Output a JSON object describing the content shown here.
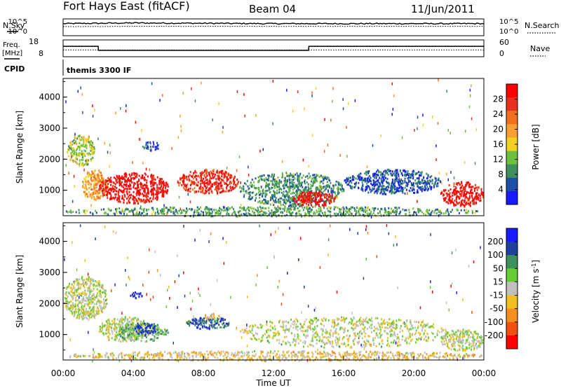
{
  "header": {
    "station": "Fort Hays East (fitACF)",
    "beam": "Beam 04",
    "date": "11/Jun/2011"
  },
  "side_labels": {
    "nsky": "N.Sky",
    "nsearch": "N.Search",
    "freq_line1": "Freq.",
    "freq_line2": "[MHz]",
    "nave": "Nave",
    "cpid": "CPID",
    "cpid_value": "themis 3300 IF"
  },
  "noise_axis": {
    "top": "10^5",
    "bottom": "10^0",
    "right_top": "10^5",
    "right_bottom": "10^0"
  },
  "freq_axis": {
    "top": "18",
    "bottom": "8"
  },
  "nave_axis": {
    "top": "60",
    "bottom": "0"
  },
  "colors": {
    "power": [
      "#1a1aff",
      "#1f4fa8",
      "#3f8f5f",
      "#6fbf3f",
      "#f0d020",
      "#f5a030",
      "#f07020",
      "#e83020",
      "#ff0000"
    ],
    "velocity": [
      "#1a1aff",
      "#2040a0",
      "#3f8f5f",
      "#66cc33",
      "#c0c0c0",
      "#f0c020",
      "#f59020",
      "#f05010",
      "#ff0000"
    ]
  },
  "chart_data": [
    {
      "type": "line",
      "panel": "noise",
      "x": [
        "00:00",
        "04:00",
        "08:00",
        "12:00",
        "16:00",
        "20:00",
        "00:00"
      ],
      "series": [
        {
          "name": "N.Sky",
          "values": [
            3.6,
            3.8,
            3.7,
            3.6,
            3.6,
            3.6,
            3.6
          ]
        },
        {
          "name": "N.Search",
          "values": [
            2.7,
            2.8,
            2.8,
            2.8,
            2.8,
            2.8,
            2.8
          ]
        }
      ],
      "ylim": [
        0,
        5
      ]
    },
    {
      "type": "line",
      "panel": "frequency",
      "x": [
        "00:00",
        "02:00",
        "02:01",
        "14:00",
        "14:01",
        "24:00"
      ],
      "series": [
        {
          "name": "Freq.",
          "values": [
            14.2,
            14.2,
            11.8,
            11.8,
            14.2,
            14.2
          ]
        },
        {
          "name": "Nave",
          "values": [
            12,
            12,
            12,
            12,
            12,
            12
          ]
        }
      ],
      "ylabel": "[MHz]",
      "ylim": [
        8,
        18
      ]
    },
    {
      "type": "heatmap",
      "panel": "power",
      "xlabel": "Time UT",
      "ylabel": "Slant Range [km]",
      "xlim_hours": [
        0,
        24
      ],
      "ylim": [
        180,
        4600
      ],
      "x_ticks": [
        "00:00",
        "04:00",
        "08:00",
        "12:00",
        "16:00",
        "20:00",
        "00:00"
      ],
      "y_ticks": [
        1000,
        2000,
        3000,
        4000
      ],
      "colorbar": {
        "label": "Power [dB]",
        "ticks": [
          4,
          8,
          12,
          16,
          20,
          24,
          28
        ],
        "range": [
          0,
          32
        ]
      },
      "regions": [
        {
          "t": [
            1.0,
            2.5
          ],
          "r": [
            700,
            1700
          ],
          "value": 20
        },
        {
          "t": [
            0.2,
            1.8
          ],
          "r": [
            1800,
            2800
          ],
          "value": 14
        },
        {
          "t": [
            2.0,
            6.0
          ],
          "r": [
            600,
            1600
          ],
          "value": 30
        },
        {
          "t": [
            4.5,
            5.5
          ],
          "r": [
            2300,
            2600
          ],
          "value": 6
        },
        {
          "t": [
            6.5,
            10.0
          ],
          "r": [
            900,
            1700
          ],
          "value": 28
        },
        {
          "t": [
            10.0,
            16.0
          ],
          "r": [
            500,
            1600
          ],
          "value": 9
        },
        {
          "t": [
            13.0,
            15.5
          ],
          "r": [
            500,
            1000
          ],
          "value": 30
        },
        {
          "t": [
            16.0,
            21.5
          ],
          "r": [
            900,
            1700
          ],
          "value": 5
        },
        {
          "t": [
            21.5,
            24.0
          ],
          "r": [
            500,
            1300
          ],
          "value": 30
        },
        {
          "t": [
            0.0,
            24.0
          ],
          "r": [
            180,
            500
          ],
          "value": 10
        }
      ]
    },
    {
      "type": "heatmap",
      "panel": "velocity",
      "xlabel": "Time UT",
      "ylabel": "Slant Range [km]",
      "xlim_hours": [
        0,
        24
      ],
      "ylim": [
        180,
        4600
      ],
      "x_ticks": [
        "00:00",
        "04:00",
        "08:00",
        "12:00",
        "16:00",
        "20:00",
        "00:00"
      ],
      "y_ticks": [
        1000,
        2000,
        3000,
        4000
      ],
      "colorbar": {
        "label": "Velocity [m s^-1]",
        "ticks": [
          200,
          100,
          50,
          15,
          -15,
          -50,
          -100,
          -200
        ],
        "range": [
          -250,
          250
        ]
      },
      "regions": [
        {
          "t": [
            0.0,
            2.5
          ],
          "r": [
            1500,
            2900
          ],
          "value": 0
        },
        {
          "t": [
            2.0,
            5.0
          ],
          "r": [
            800,
            1600
          ],
          "value": 0
        },
        {
          "t": [
            3.8,
            4.5
          ],
          "r": [
            2200,
            2400
          ],
          "value": 220
        },
        {
          "t": [
            3.0,
            6.0
          ],
          "r": [
            800,
            1400
          ],
          "value": 60
        },
        {
          "t": [
            4.0,
            5.3
          ],
          "r": [
            1000,
            1400
          ],
          "value": 180
        },
        {
          "t": [
            7.0,
            9.5
          ],
          "r": [
            1200,
            1600
          ],
          "value": 150
        },
        {
          "t": [
            8.0,
            9.0
          ],
          "r": [
            1500,
            1700
          ],
          "value": -40
        },
        {
          "t": [
            10.0,
            22.0
          ],
          "r": [
            600,
            1600
          ],
          "value": 0
        },
        {
          "t": [
            21.5,
            24.0
          ],
          "r": [
            500,
            1200
          ],
          "value": 0
        },
        {
          "t": [
            0.0,
            24.0
          ],
          "r": [
            180,
            500
          ],
          "value": -40
        }
      ]
    }
  ]
}
